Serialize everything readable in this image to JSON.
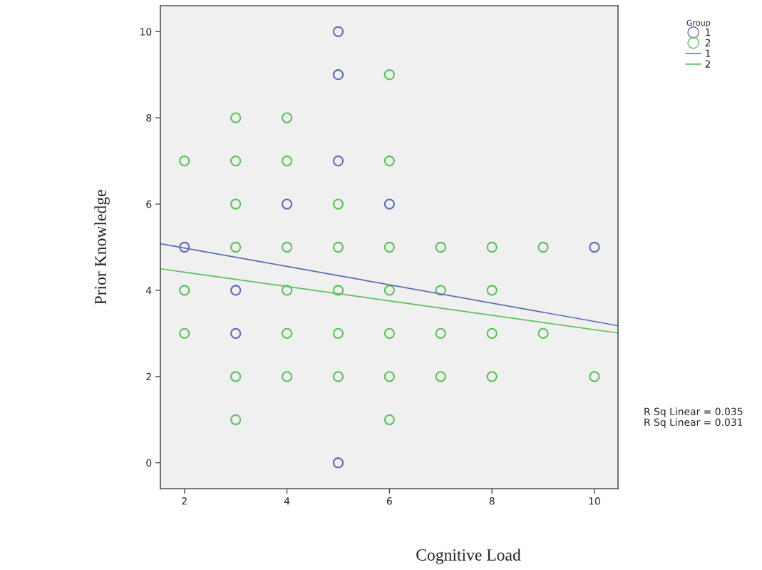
{
  "chart_data": {
    "type": "scatter",
    "xlabel": "Cognitive Load",
    "ylabel": "Prior Knowledge",
    "legend_title": "Group",
    "legend": "top right",
    "marker": "circle",
    "grid": false,
    "xlim": [
      1.53,
      10.46
    ],
    "xticks": [
      2,
      4,
      6,
      8,
      10
    ],
    "ylim": [
      -0.6,
      10.6
    ],
    "yticks": [
      0,
      2,
      4,
      6,
      8,
      10
    ],
    "series": [
      {
        "name": "1",
        "color": "#5b6bb5",
        "x": [
          5,
          5,
          5,
          4,
          6,
          2,
          10,
          3,
          3,
          5
        ],
        "values": [
          10,
          9,
          7,
          6,
          6,
          5,
          5,
          4,
          3,
          0
        ]
      },
      {
        "name": "2",
        "color": "#5cbf5a",
        "x": [
          6,
          3,
          4,
          2,
          3,
          4,
          6,
          3,
          5,
          3,
          4,
          5,
          6,
          7,
          8,
          9,
          2,
          4,
          5,
          6,
          7,
          8,
          2,
          4,
          5,
          6,
          7,
          8,
          9,
          3,
          4,
          5,
          6,
          7,
          8,
          10,
          3,
          6
        ],
        "values": [
          9,
          8,
          8,
          7,
          7,
          7,
          7,
          6,
          6,
          5,
          5,
          5,
          5,
          5,
          5,
          5,
          4,
          4,
          4,
          4,
          4,
          4,
          3,
          3,
          3,
          3,
          3,
          3,
          3,
          2,
          2,
          2,
          2,
          2,
          2,
          2,
          1,
          1
        ]
      },
      {
        "name": "1",
        "color": "#5b6bb5",
        "type": "line",
        "marker": "none",
        "x": [
          1.53,
          10.46
        ],
        "values": [
          5.08,
          3.18
        ]
      },
      {
        "name": "2",
        "color": "#5cbf5a",
        "type": "line",
        "marker": "none",
        "x": [
          1.53,
          10.46
        ],
        "values": [
          4.5,
          3.01
        ]
      }
    ],
    "annotations": [
      "R Sq Linear = 0.035",
      "R Sq Linear = 0.031"
    ]
  }
}
